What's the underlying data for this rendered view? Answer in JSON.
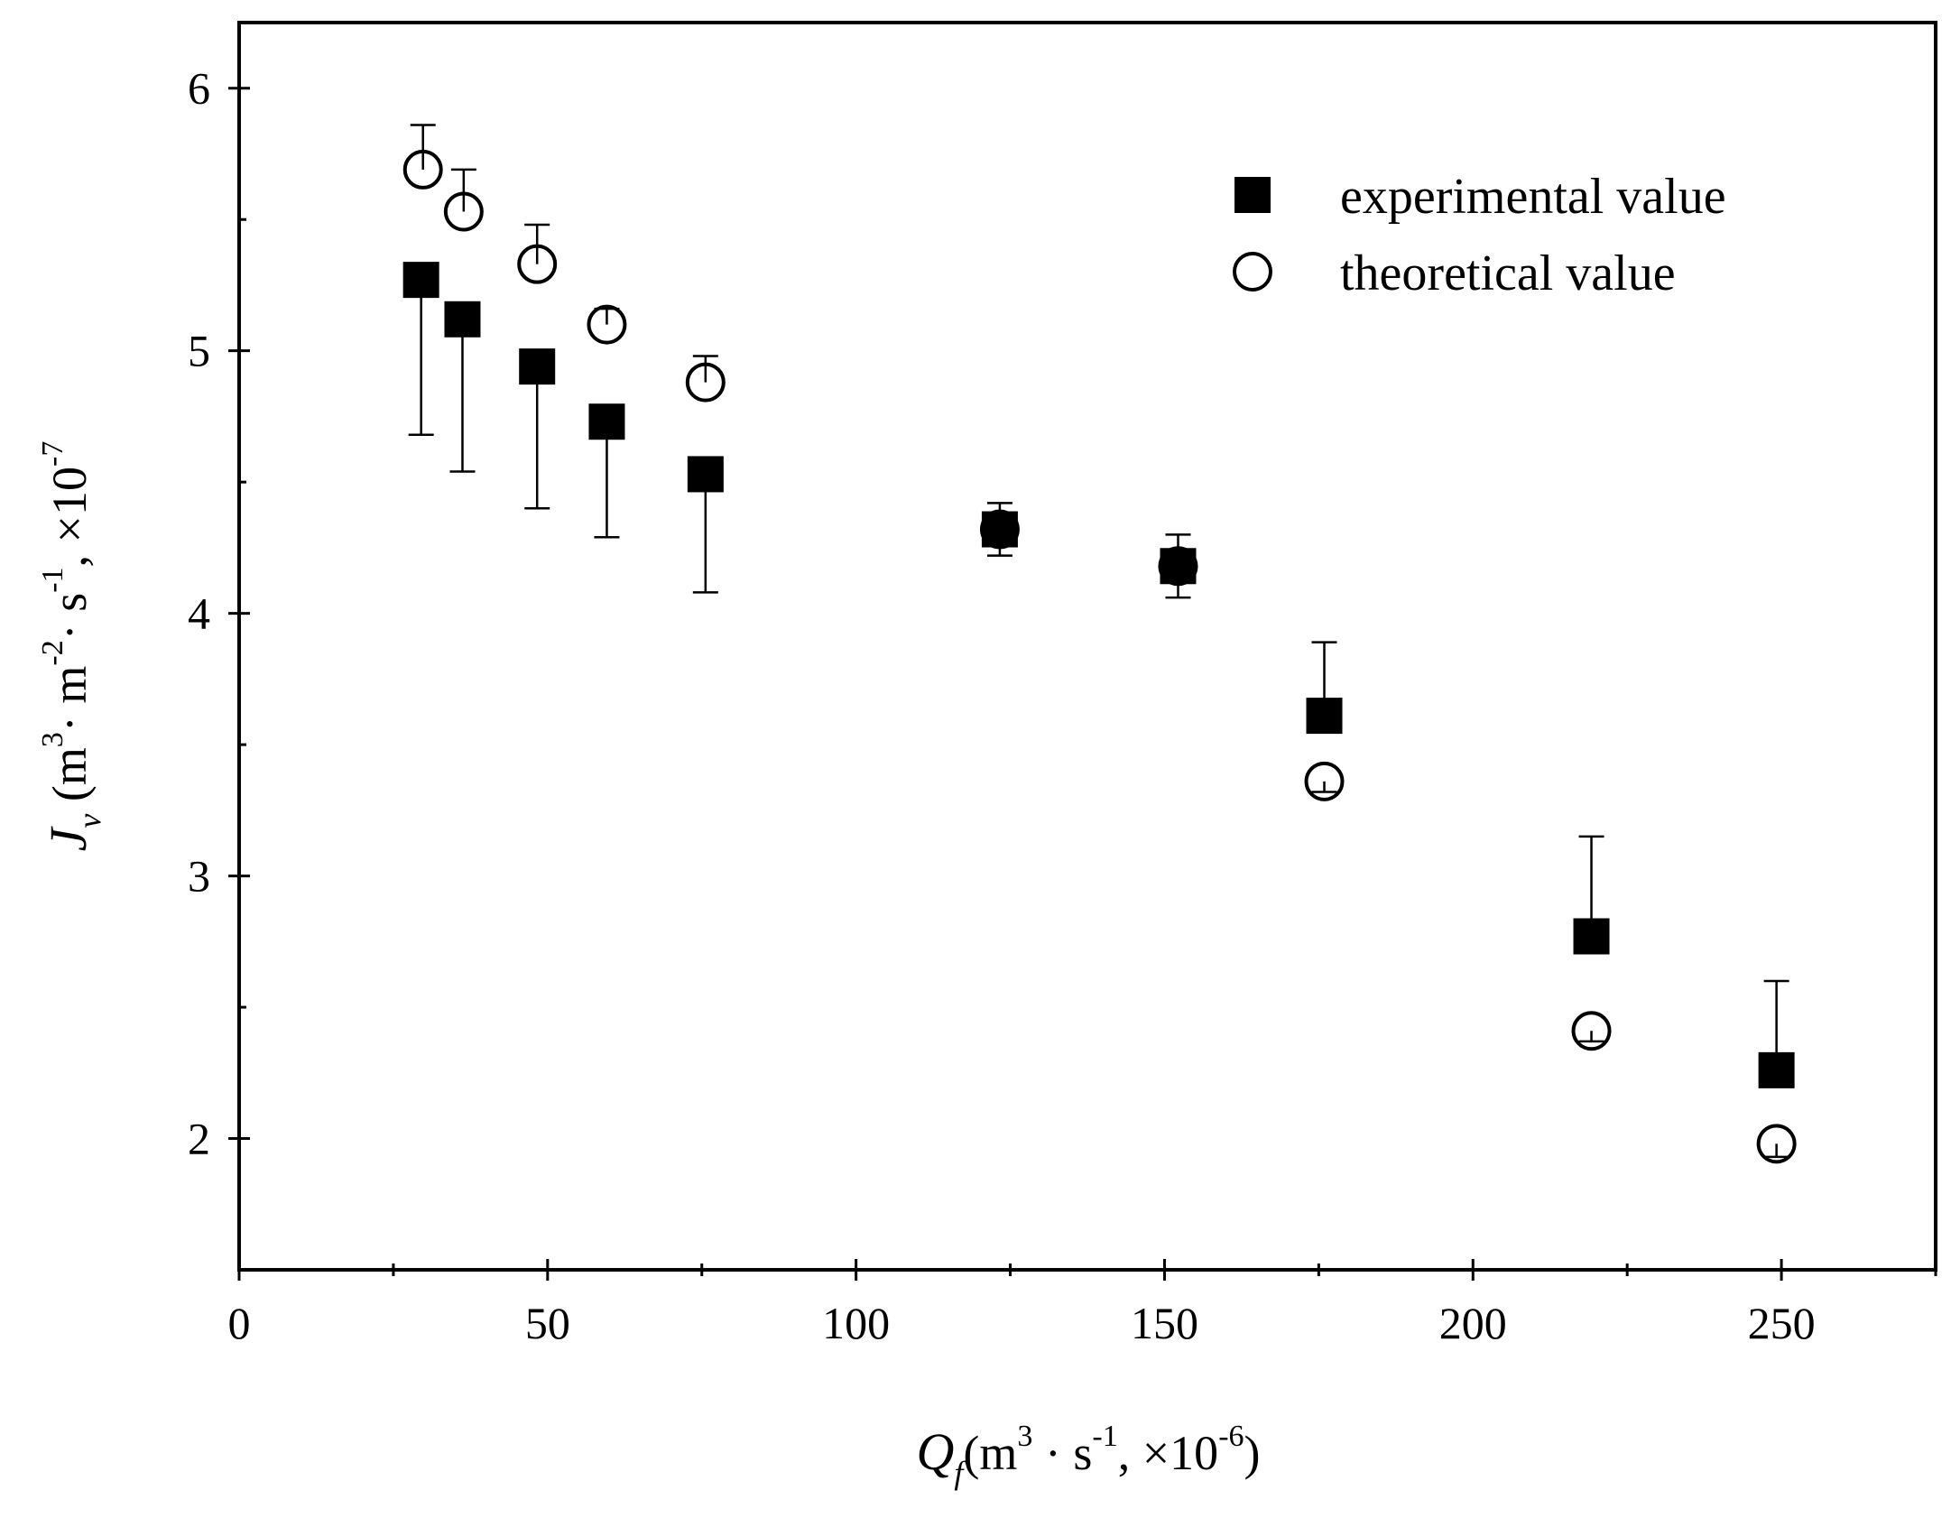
{
  "chart_data": {
    "type": "scatter",
    "title": "",
    "xlabel": {
      "symbol": "Q",
      "subscript": "f",
      "open": "(m",
      "sup1": "3",
      "mid": " · s",
      "sup2": "-1",
      "sep": ",  ×10",
      "sup3": "-6",
      "close": ")"
    },
    "ylabel": {
      "symbol": "J",
      "subscript": "v",
      "open": " (m",
      "sup1": "3",
      "m2": "· m",
      "sup2": "-2",
      "s": "· s",
      "sup3": "-1",
      "sep": ",  ×10",
      "sup4": "-7"
    },
    "xlim": [
      0,
      275
    ],
    "ylim": [
      1.5,
      6.25
    ],
    "xticks": [
      0,
      50,
      100,
      150,
      200,
      250
    ],
    "xtick_labels": [
      "0",
      "50",
      "100",
      "150",
      "200",
      "250"
    ],
    "yticks": [
      2,
      3,
      4,
      5,
      6
    ],
    "ytick_labels": [
      "2",
      "3",
      "4",
      "5",
      "6"
    ],
    "legend_position": "top-right",
    "series": [
      {
        "name": "experimental value",
        "marker": "filled-square",
        "points": [
          {
            "x": 29.5,
            "y": 5.27,
            "err_low": 4.68,
            "err_high": 5.27
          },
          {
            "x": 36.2,
            "y": 5.12,
            "err_low": 4.54,
            "err_high": 5.12
          },
          {
            "x": 48.3,
            "y": 4.94,
            "err_low": 4.4,
            "err_high": 4.94
          },
          {
            "x": 59.6,
            "y": 4.73,
            "err_low": 4.29,
            "err_high": 4.73
          },
          {
            "x": 75.6,
            "y": 4.53,
            "err_low": 4.08,
            "err_high": 4.53
          },
          {
            "x": 123.3,
            "y": 4.32,
            "err_low": 4.22,
            "err_high": 4.42
          },
          {
            "x": 152.2,
            "y": 4.18,
            "err_low": 4.06,
            "err_high": 4.3
          },
          {
            "x": 175.9,
            "y": 3.61,
            "err_low": 3.61,
            "err_high": 3.89
          },
          {
            "x": 219.2,
            "y": 2.77,
            "err_low": 2.77,
            "err_high": 3.15
          },
          {
            "x": 249.2,
            "y": 2.26,
            "err_low": 2.26,
            "err_high": 2.6
          }
        ]
      },
      {
        "name": "theoretical value",
        "marker": "open-circle",
        "points": [
          {
            "x": 29.8,
            "y": 5.69,
            "err_high": 5.86
          },
          {
            "x": 36.4,
            "y": 5.53,
            "err_high": 5.69
          },
          {
            "x": 48.3,
            "y": 5.33,
            "err_high": 5.48
          },
          {
            "x": 59.6,
            "y": 5.1,
            "err_high": 5.16
          },
          {
            "x": 75.6,
            "y": 4.88,
            "err_high": 4.98
          },
          {
            "x": 123.3,
            "y": 4.32
          },
          {
            "x": 152.2,
            "y": 4.18
          },
          {
            "x": 175.9,
            "y": 3.36,
            "err_low": 3.32
          },
          {
            "x": 219.2,
            "y": 2.41,
            "err_low": 2.37
          },
          {
            "x": 249.2,
            "y": 1.98,
            "err_low": 1.93
          }
        ]
      }
    ]
  }
}
